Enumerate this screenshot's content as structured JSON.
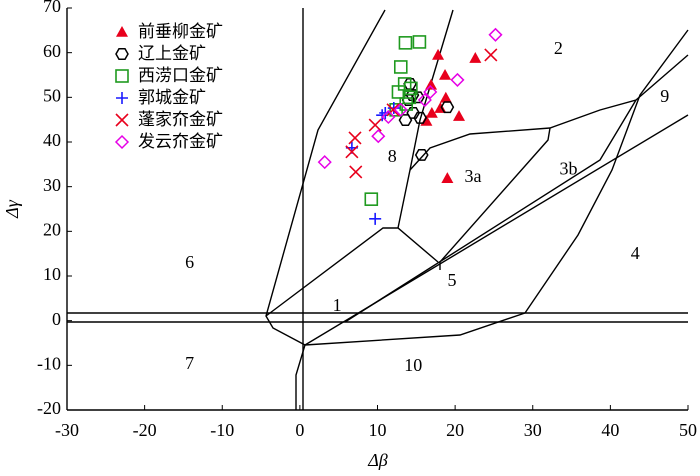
{
  "chart_data": {
    "type": "scatter",
    "x_label": "Δβ",
    "y_label": "Δγ",
    "xlim": [
      -30,
      50
    ],
    "xticks": [
      -30,
      -20,
      -10,
      0,
      10,
      20,
      30,
      40,
      50
    ],
    "ylim": [
      -20,
      70
    ],
    "yticks": [
      -20,
      -10,
      0,
      10,
      20,
      30,
      40,
      50,
      60,
      70
    ],
    "legend": "upper left",
    "annotations": [
      "1",
      "2",
      "3a",
      "3b",
      "4",
      "5",
      "6",
      "7",
      "8",
      "9",
      "10"
    ],
    "series": [
      {
        "name": "前垂柳金矿",
        "color": "#e8001c",
        "marker": "triangle",
        "x": [
          17.8,
          18.7,
          16.9,
          18.8,
          18.1,
          17.0,
          16.3,
          20.5,
          22.6,
          19.0
        ],
        "values": [
          59.5,
          55.0,
          52.8,
          49.9,
          47.6,
          46.5,
          44.7,
          45.8,
          58.8,
          31.9
        ]
      },
      {
        "name": "辽上金矿",
        "color": "#000000",
        "marker": "hexagon",
        "x": [
          15.7,
          19.0,
          13.6,
          14.0,
          14.5,
          15.2,
          14.2,
          14.6,
          15.5
        ],
        "values": [
          37.1,
          47.8,
          44.9,
          49.4,
          50.5,
          50.0,
          53.0,
          46.5,
          45.4
        ]
      },
      {
        "name": "西涝口金矿",
        "color": "#1f9a1f",
        "marker": "square",
        "x": [
          13.6,
          15.4,
          13.0,
          13.5,
          12.7,
          14.3,
          13.7,
          12.4,
          9.2,
          14.1
        ],
        "values": [
          62.2,
          62.4,
          56.8,
          53.0,
          51.2,
          52.0,
          48.5,
          47.2,
          27.2,
          50.0
        ]
      },
      {
        "name": "郭城金矿",
        "color": "#1a1aff",
        "marker": "plus",
        "x": [
          9.7,
          10.6,
          11.0,
          12.1,
          6.7
        ],
        "values": [
          22.8,
          46.0,
          46.5,
          47.6,
          38.7
        ]
      },
      {
        "name": "蓬家夼金矿",
        "color": "#e8001c",
        "marker": "cross",
        "x": [
          24.6,
          7.1,
          6.7,
          7.2,
          9.7,
          12.0
        ],
        "values": [
          59.5,
          40.9,
          37.8,
          33.3,
          43.8,
          47.2
        ]
      },
      {
        "name": "发云夼金矿",
        "color": "#e600e6",
        "marker": "diamond",
        "x": [
          25.2,
          20.3,
          3.2,
          10.1,
          11.4,
          13.0,
          16.1,
          16.8
        ],
        "values": [
          64.0,
          53.9,
          35.5,
          41.3,
          45.6,
          47.2,
          49.4,
          51.2
        ]
      }
    ]
  }
}
